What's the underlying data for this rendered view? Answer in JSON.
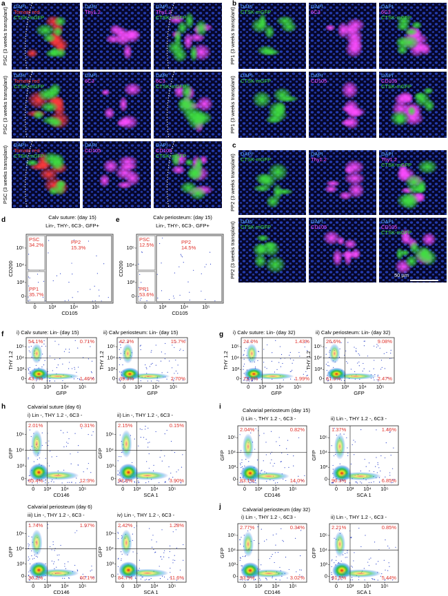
{
  "panel_letters": [
    "a",
    "b",
    "c",
    "d",
    "e",
    "f",
    "g",
    "h",
    "i",
    "j"
  ],
  "channel_colors": {
    "DAPI": "#5aa8ff",
    "Tomato red": "#ff3a3a",
    "Thy1.2": "#ff4cff",
    "6C3": "#ff4cff",
    "CD105": "#ff4cff",
    "CTSK-mGFP": "#3fe03f"
  },
  "a": {
    "rows": [
      {
        "label": "PSC (3 weeks transplant)",
        "tiles": [
          [
            "DAPI",
            "Tomato red",
            "CTSK-mGFP"
          ],
          [
            "DAPI",
            "Thy1.2"
          ],
          [
            "DAPI",
            "Thy1.2",
            "CTSK-mGFP"
          ]
        ]
      },
      {
        "label": "PSC (3 weeks transplant)",
        "tiles": [
          [
            "DAPI",
            "Tomato red",
            "CTSK-mGFP"
          ],
          [
            "DAPI",
            "6C3"
          ],
          [
            "DAPI",
            "6C3",
            "CTSK-mGFP"
          ]
        ]
      },
      {
        "label": "PSC (3 weeks transplant)",
        "tiles": [
          [
            "DAPI",
            "Tomato red",
            "CTSK-mGFP"
          ],
          [
            "DAPI",
            "CD105"
          ],
          [
            "DAPI",
            "CD105",
            "CTSK-mGFP"
          ]
        ]
      }
    ]
  },
  "b": {
    "rows": [
      {
        "label": "PP1 (3 weeks transplant)",
        "tiles": [
          [
            "DAPI",
            "CTSK-mGFP"
          ],
          [
            "DAPI",
            "6C3"
          ],
          [
            "DAPI",
            "6C3",
            "CTSK-mGFP"
          ]
        ]
      },
      {
        "label": "PP1 (3 weeks transplant)",
        "tiles": [
          [
            "DAPI",
            "CTSK-mGFP"
          ],
          [
            "DAPI",
            "CD105"
          ],
          [
            "DAPI",
            "CD105",
            "CTSK-mGFP"
          ]
        ]
      }
    ]
  },
  "c": {
    "rows": [
      {
        "label": "PP2 (3 weeks transplant)",
        "tiles": [
          [
            "DAPI",
            "CTSK-mGFP"
          ],
          [
            "DAPI",
            "Thy1.2"
          ],
          [
            "DAPI",
            "Thy1.2",
            "CTSK-mGFP"
          ]
        ]
      },
      {
        "label": "PP2 (3 weeks transplant)",
        "tiles": [
          [
            "DAPI",
            "CTSK-mGFP"
          ],
          [
            "DAPI",
            "CD105"
          ],
          [
            "DAPI",
            "CD105",
            "CTSK-mGFP"
          ]
        ]
      }
    ],
    "scale_bar": "50 µm"
  },
  "flow_ticks": [
    "0",
    "10³",
    "10⁴",
    "10⁵"
  ],
  "gates": [
    {
      "title": "Calv suture: (day 15)",
      "subtitle": "Lin-, THY-, 6C3-, GFP+",
      "x_label": "CD105",
      "y_label": "CD200",
      "gates": [
        {
          "name": "PSC",
          "value": "34.2%"
        },
        {
          "name": "PP2",
          "value": "15.3%"
        },
        {
          "name": "PP1",
          "value": "35.7%"
        }
      ]
    },
    {
      "title": "Calv periosteum: (day 15)",
      "subtitle": "Lin-, THY-, 6C3-, GFP+",
      "x_label": "CD105",
      "y_label": "CD200",
      "gates": [
        {
          "name": "PSC",
          "value": "12.5%"
        },
        {
          "name": "PP2",
          "value": "14.5%"
        },
        {
          "name": "PP1",
          "value": "53.6%"
        }
      ]
    }
  ],
  "f": {
    "plots": [
      {
        "title": "i) Calv suture: Lin- (day 15)",
        "x_label": "GFP",
        "y_label": "THY 1.2",
        "quadrants": [
          "54.1%",
          "0.71%",
          "43.7%",
          "1.46%"
        ]
      },
      {
        "title": "ii) Calv periosteum: Lin- (day 15)",
        "x_label": "GFP",
        "y_label": "THY 1.2",
        "quadrants": [
          "42.3%",
          "15.7%",
          "39.3%",
          "2.70%"
        ]
      }
    ]
  },
  "g": {
    "plots": [
      {
        "title": "i) Calv suture: Lin- (day 32)",
        "x_label": "GFP",
        "y_label": "THY 1.2",
        "quadrants": [
          "24.0%",
          "1.43%",
          "72.6%",
          "1.99%"
        ]
      },
      {
        "title": "ii) Calv periosteum: Lin- (day 32)",
        "x_label": "GFP",
        "y_label": "THY 1.2",
        "quadrants": [
          "26.6%",
          "9.08%",
          "61.9%",
          "2.47%"
        ]
      }
    ]
  },
  "h": {
    "groups": [
      {
        "title": "Calvarial suture (day 6)",
        "plots": [
          {
            "title": "i) Lin -, THY 1.2 -, 6C3 -",
            "x_label": "CD146",
            "y_label": "GFP",
            "quadrants": [
              "2.01%",
              "0.31%",
              "85.4%",
              "12.3%"
            ]
          },
          {
            "title": "ii) Lin -, THY 1.2 -, 6C3 -",
            "x_label": "SCA 1",
            "y_label": "GFP",
            "quadrants": [
              "2.15%",
              "0.15%",
              "93.8%",
              "3.90%"
            ]
          }
        ]
      },
      {
        "title": "Calvarial periosteum (day 6)",
        "plots": [
          {
            "title": "iii) Lin -, THY 1.2 -, 6C3 -",
            "x_label": "CD146",
            "y_label": "GFP",
            "quadrants": [
              "1.74%",
              "1.97%",
              "36.2%",
              "60.1%"
            ]
          },
          {
            "title": "iv) Lin -, THY 1.2 -, 6C3 -",
            "x_label": "SCA 1",
            "y_label": "GFP",
            "quadrants": [
              "2.42%",
              "1.28%",
              "84.7%",
              "11.6%"
            ]
          }
        ]
      }
    ]
  },
  "i": {
    "title": "Calvarial periosteum (day 15)",
    "plots": [
      {
        "title": "i) Lin -, THY 1.2 -, 6C3 -",
        "x_label": "CD146",
        "y_label": "GFP",
        "quadrants": [
          "2.04%",
          "0.82%",
          "83.1%",
          "14.0%"
        ]
      },
      {
        "title": "ii) Lin -, THY 1.2 -, 6C3 -",
        "x_label": "SCA 1",
        "y_label": "GFP",
        "quadrants": [
          "1.37%",
          "1.46%",
          "90.3%",
          "6.85%"
        ]
      }
    ]
  },
  "j": {
    "title": "Calvarial periosteum (day 32)",
    "plots": [
      {
        "title": "i) Lin -, THY 1.2 -, 6C3 -",
        "x_label": "CD146",
        "y_label": "GFP",
        "quadrants": [
          "2.77%",
          "0.34%",
          "93.9%",
          "3.02%"
        ]
      },
      {
        "title": "ii) Lin -, THY 1.2 -, 6C3 -",
        "x_label": "SCA 1",
        "y_label": "GFP",
        "quadrants": [
          "2.21%",
          "0.85%",
          "91.5%",
          "5.44%"
        ]
      }
    ]
  }
}
